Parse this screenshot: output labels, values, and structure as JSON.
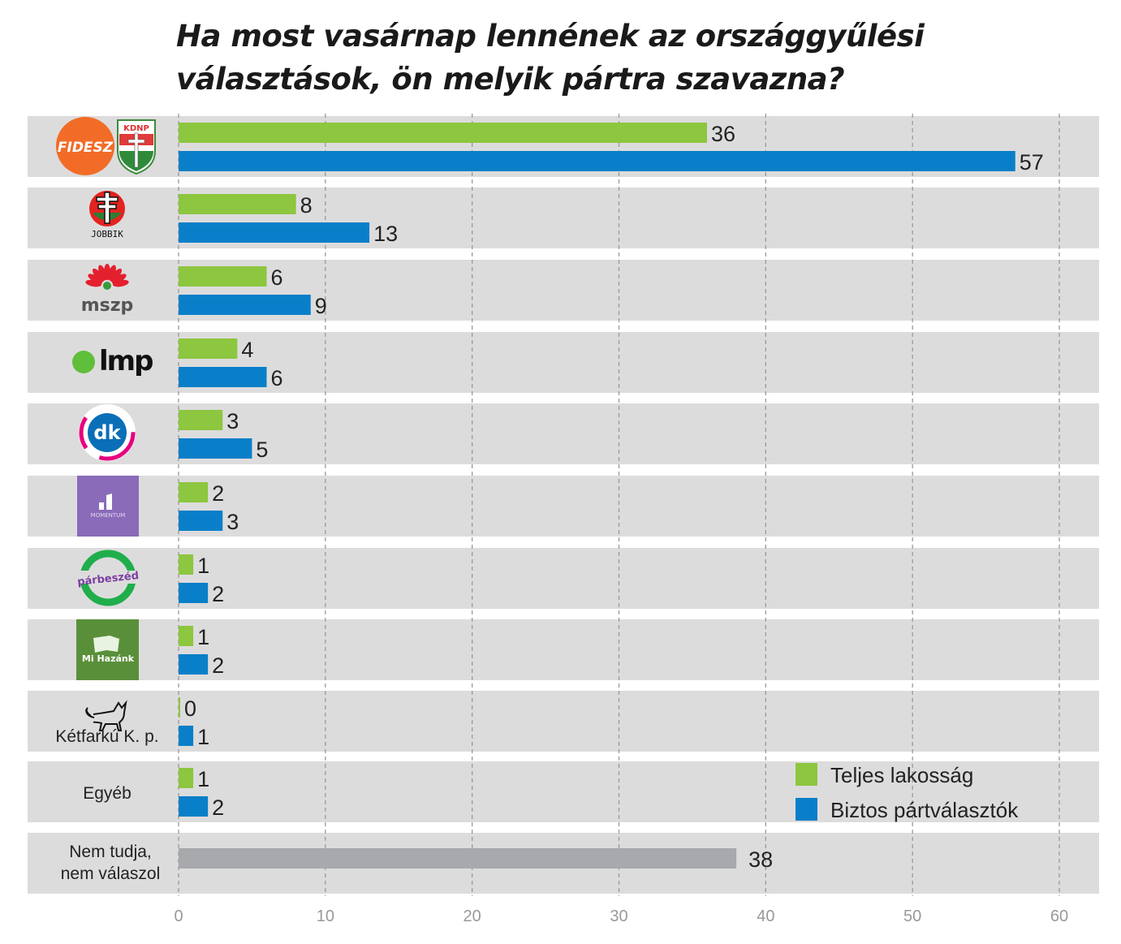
{
  "chart_data": {
    "type": "bar",
    "orientation": "horizontal",
    "title": "Ha most vasárnap lennének az országgyűlési választások, ön melyik pártra szavazna?",
    "categories": [
      "Fidesz-KDNP",
      "Jobbik",
      "MSZP",
      "LMP",
      "DK",
      "Momentum",
      "Párbeszéd",
      "Mi Hazánk",
      "Kétfarkú K. p.",
      "Egyéb",
      "Nem tudja, nem válaszol"
    ],
    "category_logo_text": [
      "FIDESZ / KDNP",
      "JOBBIK",
      "mszp",
      "lmp",
      "dk",
      "MOMENTUM",
      "párbeszéd",
      "Mi Hazánk",
      "",
      "",
      ""
    ],
    "series": [
      {
        "name": "Teljes lakosság",
        "color": "#8dc63f",
        "values": [
          36,
          8,
          6,
          4,
          3,
          2,
          1,
          1,
          0,
          1,
          null
        ]
      },
      {
        "name": "Biztos pártválasztók",
        "color": "#0a7fc9",
        "values": [
          57,
          13,
          9,
          6,
          5,
          3,
          2,
          2,
          1,
          2,
          null
        ]
      }
    ],
    "undecided": {
      "label": "Nem tudja, nem válaszol",
      "label_lines": [
        "Nem tudja,",
        "nem válaszol"
      ],
      "value": 38,
      "color": "#a7a9ac"
    },
    "xlim": [
      0,
      60
    ],
    "xticks": [
      "0",
      "10",
      "20",
      "30",
      "40",
      "50",
      "60"
    ],
    "grid": "vertical dashed",
    "legend_position": "bottom-right",
    "band_color": "#dddcdd"
  }
}
